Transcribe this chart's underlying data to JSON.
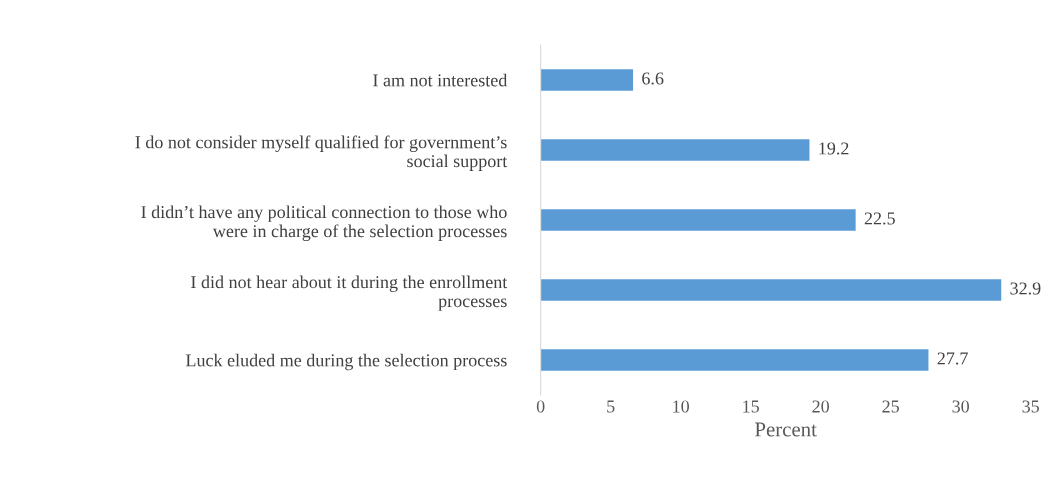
{
  "chart_data": {
    "type": "bar",
    "orientation": "horizontal",
    "xlabel": "Percent",
    "categories": [
      "I am not interested",
      "I do not consider myself qualified for government’s\nsocial support",
      "I didn’t have any political connection to those who\nwere in charge of the selection processes",
      "I did not hear about it during the enrollment\nprocesses",
      "Luck eluded me during the selection process"
    ],
    "values": [
      6.6,
      19.2,
      22.5,
      32.9,
      27.7
    ],
    "color": "#5b9bd5",
    "xlim": [
      0,
      35
    ],
    "xticks": [
      0,
      5,
      10,
      15,
      20,
      25,
      30,
      35
    ],
    "grid": false,
    "data_labels": true
  }
}
